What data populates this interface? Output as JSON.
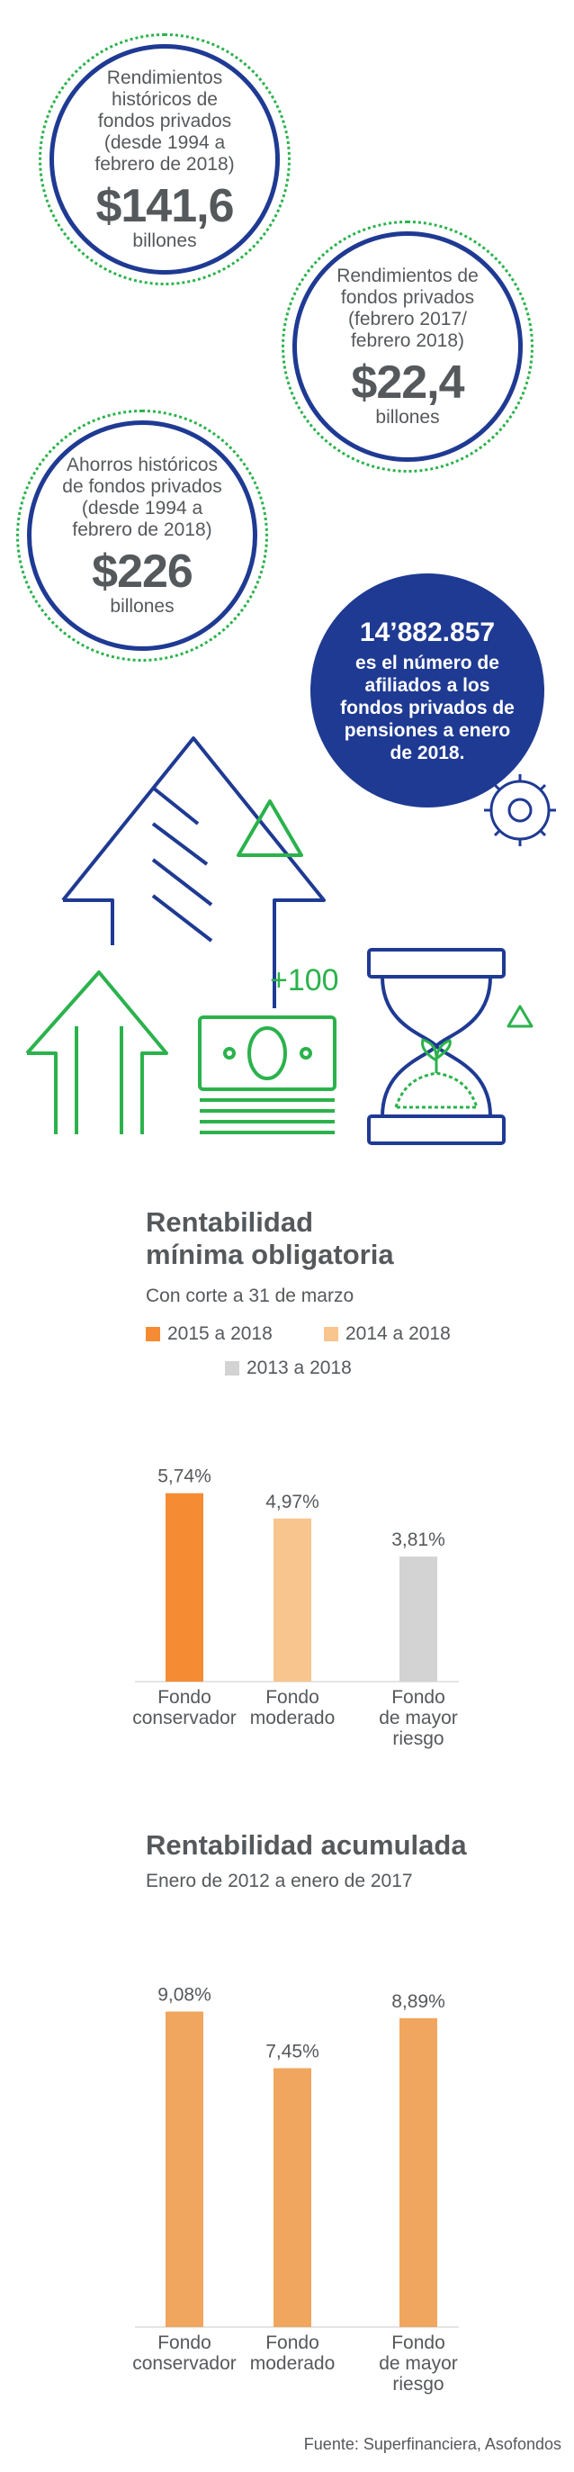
{
  "bubbles": [
    {
      "text": "Rendimientos\nhistóricos de\nfondos privados\n(desde 1994 a\nfebrero de 2018)",
      "value": "$141,6",
      "unit": "billones"
    },
    {
      "text": "Rendimientos de\nfondos privados\n(febrero 2017/\nfebrero 2018)",
      "value": "$22,4",
      "unit": "billones"
    },
    {
      "text": "Ahorros históricos\nde fondos privados\n(desde 1994 a\nfebrero de 2018)",
      "value": "$226",
      "unit": "billones"
    }
  ],
  "stat": {
    "number": "14’882.857",
    "text": "es el número de\nafiliados a los\nfondos privados de\npensiones a enero\nde 2018."
  },
  "illustration": {
    "plus_label": "+100",
    "icons": [
      "arrow-up-icon",
      "money-bill-icon",
      "hourglass-icon",
      "gear-icon",
      "triangle-icon"
    ]
  },
  "colors": {
    "navy": "#1f3a93",
    "green": "#2bb24c",
    "orange": "#f58b32",
    "light_orange": "#f8c58e",
    "gray": "#d3d3d3",
    "accum": "#f0a65e"
  },
  "chart_data": [
    {
      "type": "bar",
      "title": "Rentabilidad\nmínima obligatoria",
      "subtitle": "Con corte a 31 de marzo",
      "categories": [
        "Fondo\nconservador",
        "Fondo\nmoderado",
        "Fondo\nde mayor\nriesgo"
      ],
      "values": [
        5.74,
        4.97,
        3.81
      ],
      "value_labels": [
        "5,74%",
        "4,97%",
        "3,81%"
      ],
      "legend": [
        "2015 a 2018",
        "2014 a 2018",
        "2013 a 2018"
      ],
      "bar_colors": [
        "#f58b32",
        "#f8c58e",
        "#d3d3d3"
      ],
      "ylim": [
        0,
        6.5
      ]
    },
    {
      "type": "bar",
      "title": "Rentabilidad acumulada",
      "subtitle": "Enero de 2012 a enero de 2017",
      "categories": [
        "Fondo\nconservador",
        "Fondo\nmoderado",
        "Fondo\nde mayor\nriesgo"
      ],
      "values": [
        9.08,
        7.45,
        8.89
      ],
      "value_labels": [
        "9,08%",
        "7,45%",
        "8,89%"
      ],
      "bar_colors": [
        "#f0a65e",
        "#f0a65e",
        "#f0a65e"
      ],
      "ylim": [
        0,
        10
      ]
    }
  ],
  "source": "Fuente: Superfinanciera, Asofondos"
}
